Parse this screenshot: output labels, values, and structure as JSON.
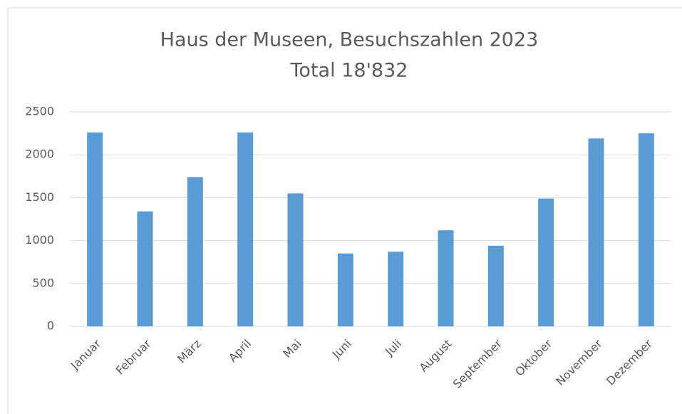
{
  "chart_data": {
    "type": "bar",
    "title": "Haus der Museen, Besuchszahlen 2023",
    "subtitle": "Total 18'832",
    "categories": [
      "Januar",
      "Februar",
      "März",
      "April",
      "Mai",
      "Juni",
      "Juli",
      "August",
      "September",
      "Oktober",
      "November",
      "Dezember"
    ],
    "values": [
      2260,
      1340,
      1740,
      2260,
      1550,
      850,
      870,
      1120,
      940,
      1490,
      2190,
      2250
    ],
    "color": "#5b9bd5",
    "ylim": [
      0,
      2500
    ],
    "yticks": [
      0,
      500,
      1000,
      1500,
      2000,
      2500
    ],
    "grid": true
  }
}
